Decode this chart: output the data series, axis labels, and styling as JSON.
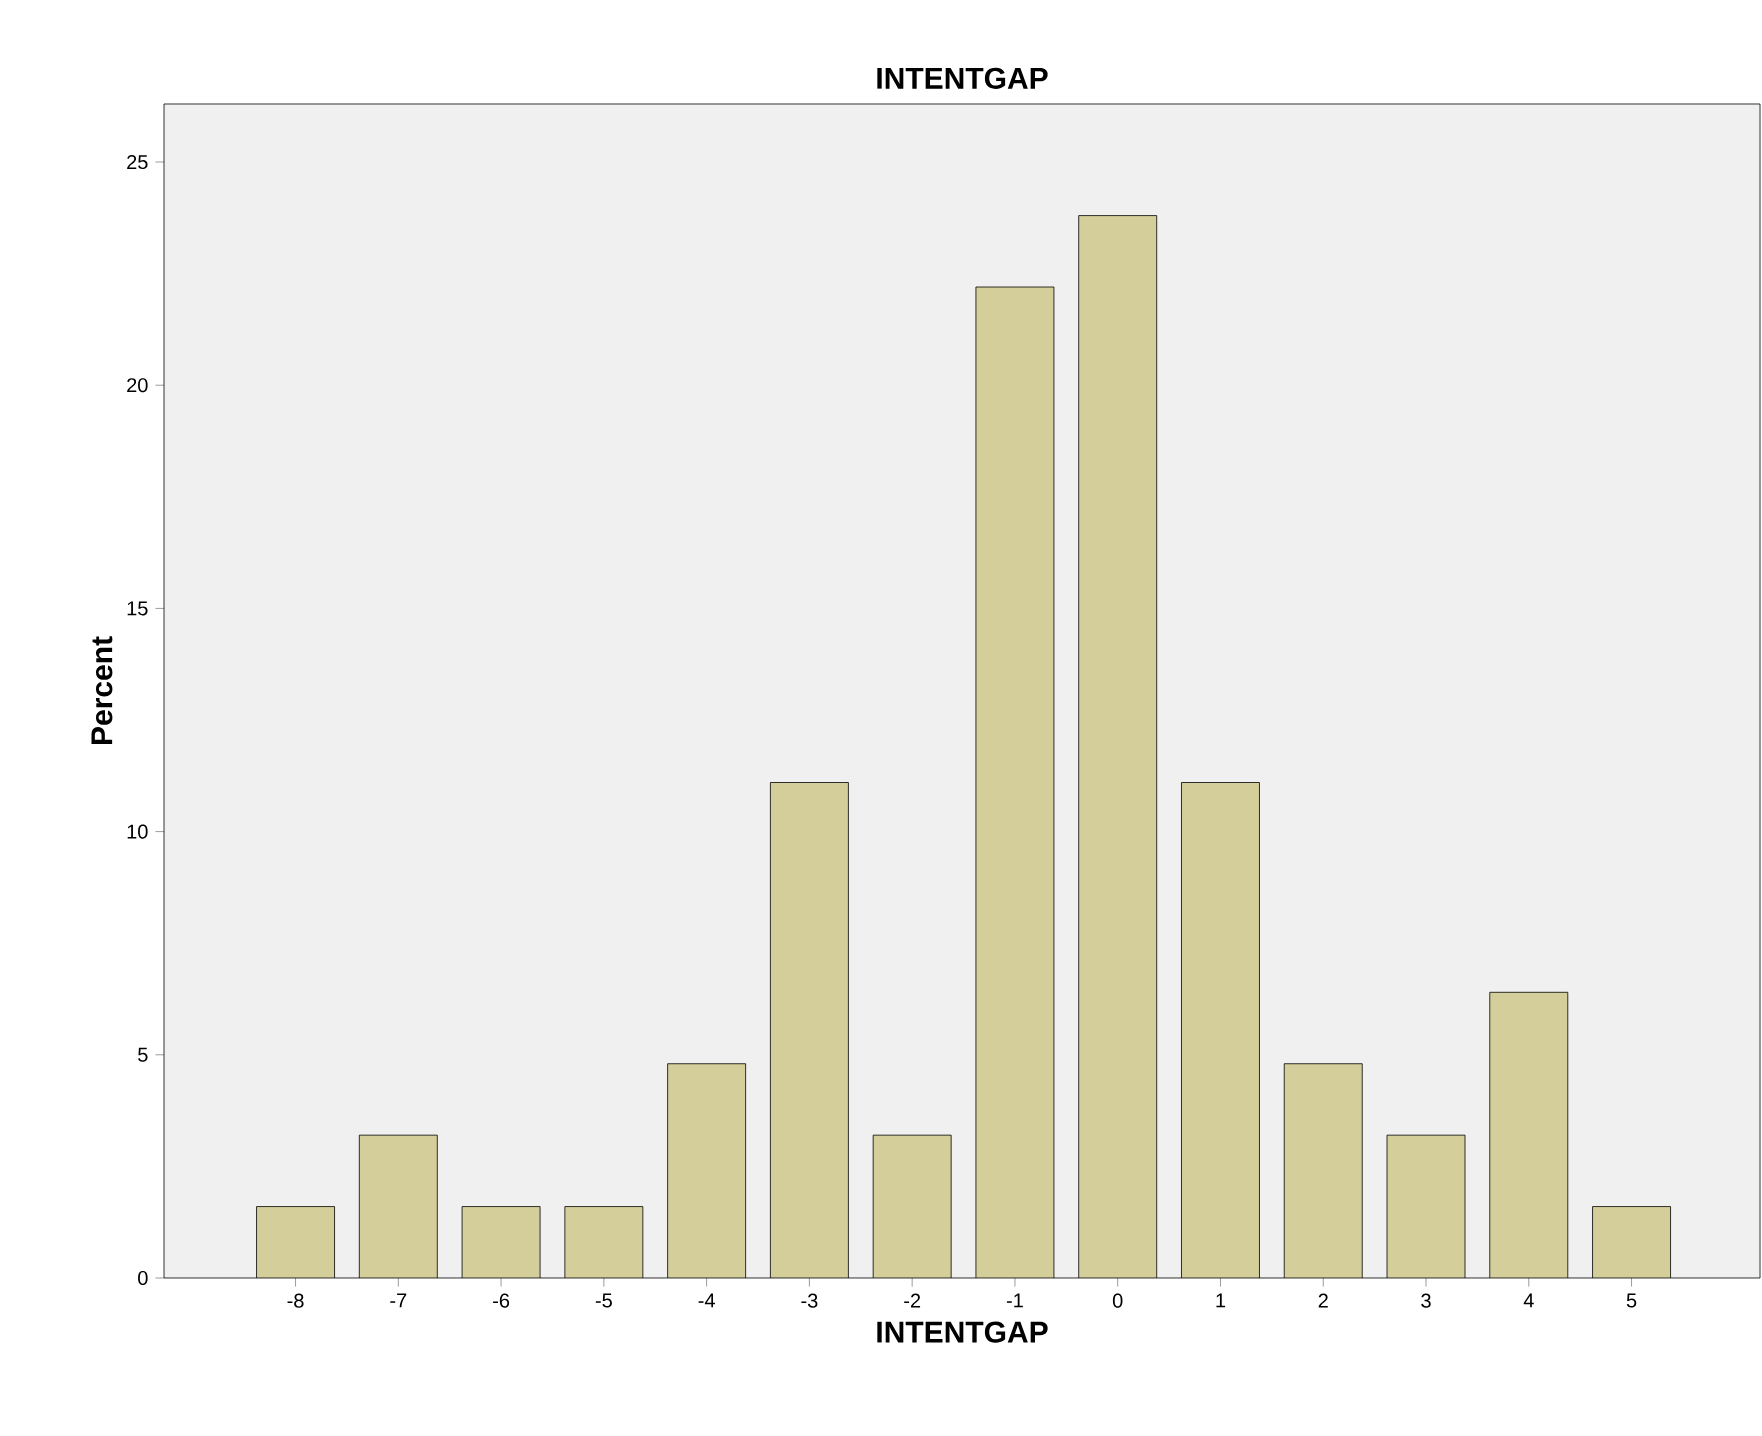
{
  "chart_data": {
    "type": "bar",
    "title": "INTENTGAP",
    "xlabel": "INTENTGAP",
    "ylabel": "Percent",
    "categories": [
      "-8",
      "-7",
      "-6",
      "-5",
      "-4",
      "-3",
      "-2",
      "-1",
      "0",
      "1",
      "2",
      "3",
      "4",
      "5"
    ],
    "values": [
      1.6,
      3.2,
      1.6,
      1.6,
      4.8,
      11.1,
      3.2,
      22.2,
      23.8,
      11.1,
      4.8,
      3.2,
      6.4,
      1.6
    ],
    "color": "#d4cf9a",
    "ylim": [
      0,
      26.3
    ],
    "yticks": [
      0,
      5,
      10,
      15,
      20,
      25
    ],
    "grid": false
  }
}
